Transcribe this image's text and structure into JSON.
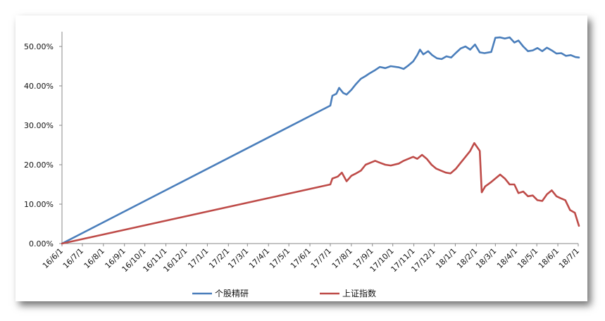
{
  "chart_data": {
    "type": "line",
    "title": "",
    "xlabel": "",
    "ylabel": "",
    "x_ticks": [
      "16/6/1",
      "16/7/1",
      "16/8/1",
      "16/9/1",
      "16/10/1",
      "16/11/1",
      "16/12/1",
      "17/1/1",
      "17/2/1",
      "17/3/1",
      "17/4/1",
      "17/5/1",
      "17/6/1",
      "17/7/1",
      "17/8/1",
      "17/9/1",
      "17/10/1",
      "17/11/1",
      "17/12/1",
      "18/1/1",
      "18/2/1",
      "18/3/1",
      "18/4/1",
      "18/5/1",
      "18/6/1",
      "18/7/1"
    ],
    "y_ticks": [
      "0.00%",
      "10.00%",
      "20.00%",
      "30.00%",
      "40.00%",
      "50.00%"
    ],
    "ylim": [
      0,
      0.55
    ],
    "grid": false,
    "legend_position": "bottom",
    "series": [
      {
        "name": "个股精研",
        "color": "#4a7ebb",
        "points": [
          [
            "2016-06-01",
            0.0
          ],
          [
            "2017-07-01",
            0.35
          ],
          [
            "2017-07-04",
            0.375
          ],
          [
            "2017-07-10",
            0.38
          ],
          [
            "2017-07-14",
            0.395
          ],
          [
            "2017-07-20",
            0.382
          ],
          [
            "2017-07-25",
            0.378
          ],
          [
            "2017-08-01",
            0.39
          ],
          [
            "2017-08-08",
            0.405
          ],
          [
            "2017-08-15",
            0.418
          ],
          [
            "2017-08-22",
            0.425
          ],
          [
            "2017-08-28",
            0.432
          ],
          [
            "2017-09-05",
            0.44
          ],
          [
            "2017-09-12",
            0.448
          ],
          [
            "2017-09-20",
            0.445
          ],
          [
            "2017-09-28",
            0.45
          ],
          [
            "2017-10-10",
            0.447
          ],
          [
            "2017-10-17",
            0.443
          ],
          [
            "2017-10-24",
            0.452
          ],
          [
            "2017-10-31",
            0.462
          ],
          [
            "2017-11-06",
            0.478
          ],
          [
            "2017-11-10",
            0.492
          ],
          [
            "2017-11-15",
            0.48
          ],
          [
            "2017-11-22",
            0.488
          ],
          [
            "2017-11-28",
            0.478
          ],
          [
            "2017-12-05",
            0.47
          ],
          [
            "2017-12-12",
            0.468
          ],
          [
            "2017-12-19",
            0.475
          ],
          [
            "2017-12-26",
            0.472
          ],
          [
            "2018-01-02",
            0.484
          ],
          [
            "2018-01-09",
            0.495
          ],
          [
            "2018-01-16",
            0.5
          ],
          [
            "2018-01-23",
            0.492
          ],
          [
            "2018-01-30",
            0.505
          ],
          [
            "2018-02-06",
            0.485
          ],
          [
            "2018-02-13",
            0.483
          ],
          [
            "2018-02-23",
            0.486
          ],
          [
            "2018-03-01",
            0.522
          ],
          [
            "2018-03-08",
            0.523
          ],
          [
            "2018-03-15",
            0.52
          ],
          [
            "2018-03-22",
            0.523
          ],
          [
            "2018-03-29",
            0.51
          ],
          [
            "2018-04-04",
            0.515
          ],
          [
            "2018-04-11",
            0.5
          ],
          [
            "2018-04-18",
            0.488
          ],
          [
            "2018-04-25",
            0.49
          ],
          [
            "2018-05-02",
            0.496
          ],
          [
            "2018-05-09",
            0.488
          ],
          [
            "2018-05-16",
            0.497
          ],
          [
            "2018-05-23",
            0.49
          ],
          [
            "2018-05-30",
            0.482
          ],
          [
            "2018-06-06",
            0.483
          ],
          [
            "2018-06-13",
            0.476
          ],
          [
            "2018-06-20",
            0.478
          ],
          [
            "2018-06-27",
            0.473
          ],
          [
            "2018-07-02",
            0.472
          ]
        ]
      },
      {
        "name": "上证指数",
        "color": "#be4b48",
        "points": [
          [
            "2016-06-01",
            0.0
          ],
          [
            "2017-07-01",
            0.15
          ],
          [
            "2017-07-04",
            0.165
          ],
          [
            "2017-07-12",
            0.17
          ],
          [
            "2017-07-18",
            0.18
          ],
          [
            "2017-07-25",
            0.158
          ],
          [
            "2017-08-01",
            0.172
          ],
          [
            "2017-08-08",
            0.178
          ],
          [
            "2017-08-15",
            0.185
          ],
          [
            "2017-08-22",
            0.2
          ],
          [
            "2017-08-29",
            0.205
          ],
          [
            "2017-09-05",
            0.21
          ],
          [
            "2017-09-12",
            0.205
          ],
          [
            "2017-09-20",
            0.2
          ],
          [
            "2017-09-28",
            0.198
          ],
          [
            "2017-10-10",
            0.203
          ],
          [
            "2017-10-17",
            0.21
          ],
          [
            "2017-10-24",
            0.215
          ],
          [
            "2017-10-31",
            0.22
          ],
          [
            "2017-11-06",
            0.215
          ],
          [
            "2017-11-13",
            0.225
          ],
          [
            "2017-11-20",
            0.215
          ],
          [
            "2017-11-27",
            0.2
          ],
          [
            "2017-12-04",
            0.19
          ],
          [
            "2017-12-11",
            0.185
          ],
          [
            "2017-12-18",
            0.18
          ],
          [
            "2017-12-25",
            0.178
          ],
          [
            "2018-01-02",
            0.19
          ],
          [
            "2018-01-09",
            0.205
          ],
          [
            "2018-01-16",
            0.22
          ],
          [
            "2018-01-23",
            0.235
          ],
          [
            "2018-01-29",
            0.255
          ],
          [
            "2018-02-02",
            0.245
          ],
          [
            "2018-02-06",
            0.235
          ],
          [
            "2018-02-09",
            0.13
          ],
          [
            "2018-02-14",
            0.145
          ],
          [
            "2018-02-22",
            0.155
          ],
          [
            "2018-03-01",
            0.165
          ],
          [
            "2018-03-08",
            0.175
          ],
          [
            "2018-03-15",
            0.165
          ],
          [
            "2018-03-22",
            0.15
          ],
          [
            "2018-03-29",
            0.15
          ],
          [
            "2018-04-04",
            0.128
          ],
          [
            "2018-04-11",
            0.132
          ],
          [
            "2018-04-18",
            0.12
          ],
          [
            "2018-04-25",
            0.122
          ],
          [
            "2018-05-02",
            0.11
          ],
          [
            "2018-05-09",
            0.108
          ],
          [
            "2018-05-16",
            0.125
          ],
          [
            "2018-05-23",
            0.135
          ],
          [
            "2018-05-30",
            0.12
          ],
          [
            "2018-06-05",
            0.115
          ],
          [
            "2018-06-12",
            0.11
          ],
          [
            "2018-06-19",
            0.085
          ],
          [
            "2018-06-26",
            0.078
          ],
          [
            "2018-07-02",
            0.045
          ]
        ]
      }
    ]
  }
}
